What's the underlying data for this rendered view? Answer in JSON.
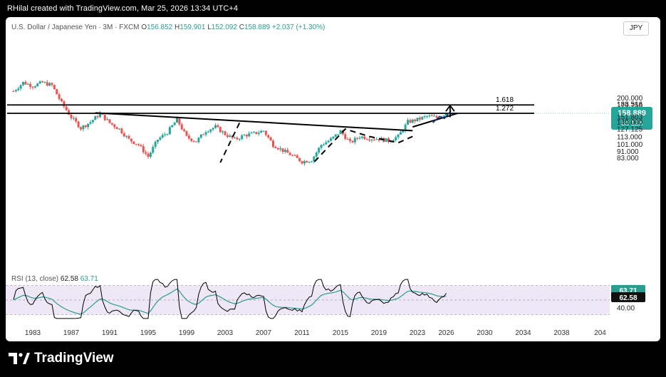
{
  "header": "RHilal created with TradingView.com, Mar 25, 2026 13:34 UTC+4",
  "symbol": {
    "name": "U.S. Dollar / Japanese Yen · 3M · FXCM",
    "open_label": "O",
    "open": "156.852",
    "high_label": "H",
    "high": "159.901",
    "low_label": "L",
    "low": "152.092",
    "close_label": "C",
    "close": "158.889",
    "change": "+2.037 (+1.30%)"
  },
  "currency": "JPY",
  "rsi": {
    "label": "RSI (13, close)",
    "value": "62.58",
    "ma": "63.71"
  },
  "brand": "TradingView",
  "colors": {
    "up": "#26a69a",
    "down": "#ef5350",
    "rsi_line": "#000000",
    "rsi_ma": "#2a9d8f",
    "rsi_band": "#ede7f6",
    "fib_line": "#000000",
    "pattern": "#1e3a8a"
  },
  "chart_data": {
    "type": "candlestick",
    "title": "U.S. Dollar / Japanese Yen · 3M · FXCM",
    "y_scale": "log",
    "price_axis_labels": [
      "200.000",
      "183.516",
      "179.756",
      "158.889",
      "151.803",
      "140.000",
      "127.125",
      "113.000",
      "101.000",
      "91.000",
      "83.000"
    ],
    "last_price": "158.889",
    "countdown": "6d 12h",
    "x_tick_labels": [
      "1983",
      "1987",
      "1991",
      "1995",
      "1999",
      "2003",
      "2007",
      "2011",
      "2015",
      "2019",
      "2023",
      "2026",
      "2030",
      "2034",
      "2038",
      "204"
    ],
    "fib_levels": [
      {
        "label": "1.618",
        "value": 179.756
      },
      {
        "label": "1.272",
        "value": 158.889
      }
    ],
    "trendline": {
      "from": [
        1989.5,
        160
      ],
      "to": [
        2022.5,
        123
      ]
    },
    "price_path": [
      [
        1981.0,
        220
      ],
      [
        1982.0,
        250
      ],
      [
        1983.0,
        238
      ],
      [
        1984.0,
        250
      ],
      [
        1985.0,
        240
      ],
      [
        1986.0,
        185
      ],
      [
        1987.0,
        150
      ],
      [
        1988.0,
        128
      ],
      [
        1989.0,
        140
      ],
      [
        1990.0,
        158
      ],
      [
        1991.0,
        138
      ],
      [
        1992.0,
        126
      ],
      [
        1993.0,
        108
      ],
      [
        1994.0,
        100
      ],
      [
        1995.0,
        84
      ],
      [
        1996.0,
        108
      ],
      [
        1997.0,
        120
      ],
      [
        1998.0,
        145
      ],
      [
        1999.0,
        112
      ],
      [
        2000.0,
        105
      ],
      [
        2001.0,
        123
      ],
      [
        2002.0,
        130
      ],
      [
        2003.0,
        117
      ],
      [
        2004.0,
        108
      ],
      [
        2005.0,
        115
      ],
      [
        2006.0,
        118
      ],
      [
        2007.0,
        123
      ],
      [
        2008.0,
        100
      ],
      [
        2009.0,
        92
      ],
      [
        2010.0,
        85
      ],
      [
        2011.0,
        78
      ],
      [
        2012.0,
        80
      ],
      [
        2013.0,
        100
      ],
      [
        2014.0,
        108
      ],
      [
        2015.0,
        122
      ],
      [
        2016.0,
        103
      ],
      [
        2017.0,
        113
      ],
      [
        2018.0,
        110
      ],
      [
        2019.0,
        109
      ],
      [
        2020.0,
        106
      ],
      [
        2021.0,
        113
      ],
      [
        2022.0,
        140
      ],
      [
        2023.0,
        145
      ],
      [
        2024.0,
        152
      ],
      [
        2025.0,
        150
      ],
      [
        2026.0,
        158.889
      ]
    ],
    "rsi_levels": [
      70,
      50,
      30
    ],
    "rsi_axis_labels": [
      "63.71",
      "62.58",
      "40.00"
    ],
    "rsi_value": 62.58,
    "rsi_ma": 63.71
  }
}
